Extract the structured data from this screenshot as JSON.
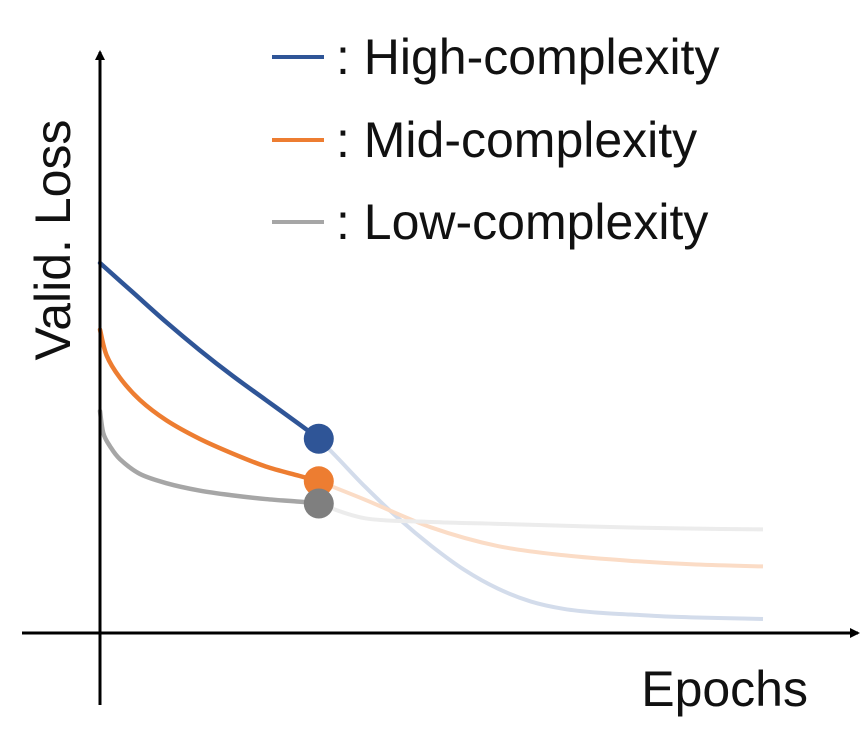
{
  "chart_data": {
    "type": "line",
    "title": "",
    "xlabel": "Epochs",
    "ylabel": "Valid. Loss",
    "xlim": [
      0,
      10
    ],
    "ylim": [
      0,
      10
    ],
    "ticks": "none",
    "grid": false,
    "legend": {
      "placement": "top-right"
    },
    "highlight_x": 3.3,
    "series": [
      {
        "name": ": High-complexity",
        "color": "#2f5597",
        "faded_color": "#d3dceb",
        "x": [
          0,
          0.5,
          1,
          1.5,
          2,
          2.5,
          3,
          3.3,
          3.6,
          4,
          4.5,
          5,
          5.5,
          6,
          6.5,
          7,
          7.5,
          8,
          8.5,
          9,
          9.5,
          10
        ],
        "y": [
          10.0,
          9.2,
          8.4,
          7.65,
          6.95,
          6.3,
          5.65,
          5.25,
          4.7,
          3.95,
          3.1,
          2.35,
          1.7,
          1.2,
          0.85,
          0.65,
          0.55,
          0.5,
          0.45,
          0.42,
          0.4,
          0.38
        ]
      },
      {
        "name": ": Mid-complexity",
        "color": "#ed7d31",
        "faded_color": "#fbdcc6",
        "x": [
          0,
          0.1,
          0.3,
          0.6,
          1,
          1.5,
          2,
          2.5,
          3,
          3.3,
          4,
          5,
          6,
          7,
          8,
          9,
          10
        ],
        "y": [
          8.2,
          7.5,
          6.9,
          6.3,
          5.75,
          5.25,
          4.85,
          4.5,
          4.25,
          4.1,
          3.6,
          2.85,
          2.35,
          2.1,
          1.95,
          1.85,
          1.8
        ]
      },
      {
        "name": ": Low-complexity",
        "color": "#a6a6a6",
        "faded_color": "#ececec",
        "x": [
          0,
          0.05,
          0.15,
          0.3,
          0.6,
          1,
          1.5,
          2,
          2.5,
          3,
          3.3,
          4,
          5,
          6,
          7,
          8,
          9,
          10
        ],
        "y": [
          6.0,
          5.4,
          5.05,
          4.7,
          4.3,
          4.05,
          3.85,
          3.72,
          3.62,
          3.55,
          3.5,
          3.1,
          3.0,
          2.95,
          2.9,
          2.85,
          2.82,
          2.8
        ]
      }
    ],
    "markers": [
      {
        "series": 0,
        "x": 3.3,
        "y": 5.25,
        "color": "#2f5597"
      },
      {
        "series": 1,
        "x": 3.3,
        "y": 4.1,
        "color": "#ed7d31"
      },
      {
        "series": 2,
        "x": 3.3,
        "y": 3.5,
        "color": "#7f7f7f"
      }
    ]
  }
}
